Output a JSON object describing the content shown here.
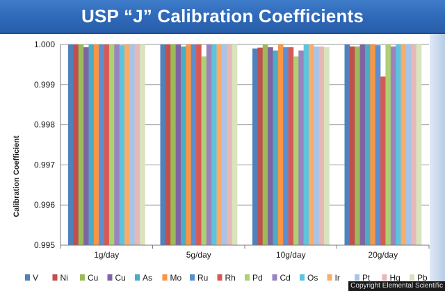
{
  "page": {
    "title": "USP “J” Calibration Coefficients",
    "copyright": "Copyright Elemental Scientific"
  },
  "chart_data": {
    "type": "bar",
    "title": "",
    "xlabel": "",
    "ylabel": "Calibration Coefficient",
    "ylim": [
      0.995,
      1.0
    ],
    "yticks": [
      "0.995",
      "0.996",
      "0.997",
      "0.998",
      "0.999",
      "1.000"
    ],
    "grid": true,
    "legend_position": "bottom",
    "categories": [
      "1g/day",
      "5g/day",
      "10g/day",
      "20g/day"
    ],
    "series": [
      {
        "name": "V",
        "color": "#4f81bd",
        "values": [
          1.0,
          1.0,
          0.9999,
          1.0
        ]
      },
      {
        "name": "Ni",
        "color": "#c0504d",
        "values": [
          1.0,
          1.0,
          0.99992,
          0.99995
        ]
      },
      {
        "name": "Cu",
        "color": "#9bbb59",
        "values": [
          1.0,
          1.0,
          1.0,
          0.99995
        ]
      },
      {
        "name": "Cu",
        "color": "#8064a2",
        "values": [
          0.99993,
          1.0,
          0.99993,
          1.0
        ]
      },
      {
        "name": "As",
        "color": "#4bacc6",
        "values": [
          1.0,
          0.99995,
          0.99985,
          1.0
        ]
      },
      {
        "name": "Mo",
        "color": "#f79646",
        "values": [
          1.0,
          1.0,
          1.0,
          1.0
        ]
      },
      {
        "name": "Ru",
        "color": "#5b8fd0",
        "values": [
          1.0,
          1.0,
          0.99993,
          0.99998
        ]
      },
      {
        "name": "Rh",
        "color": "#d55a57",
        "values": [
          1.0,
          1.0,
          0.99993,
          0.9992
        ]
      },
      {
        "name": "Pd",
        "color": "#aecf72",
        "values": [
          1.0,
          0.9997,
          0.9997,
          1.0
        ]
      },
      {
        "name": "Cd",
        "color": "#9b84bd",
        "values": [
          1.0,
          1.0,
          0.99985,
          0.99995
        ]
      },
      {
        "name": "Os",
        "color": "#5ec3dd",
        "values": [
          0.99998,
          1.0,
          1.0,
          1.0
        ]
      },
      {
        "name": "Ir",
        "color": "#f9ad6a",
        "values": [
          1.0,
          1.0,
          1.0,
          1.0
        ]
      },
      {
        "name": "Pt",
        "color": "#a9c4e6",
        "values": [
          1.0,
          1.0,
          0.99995,
          1.0
        ]
      },
      {
        "name": "Hg",
        "color": "#e8b8b7",
        "values": [
          1.0,
          1.0,
          0.99995,
          1.0
        ]
      },
      {
        "name": "Pb",
        "color": "#d7e4bd",
        "values": [
          1.0,
          1.0,
          0.99993,
          1.0
        ]
      }
    ]
  }
}
